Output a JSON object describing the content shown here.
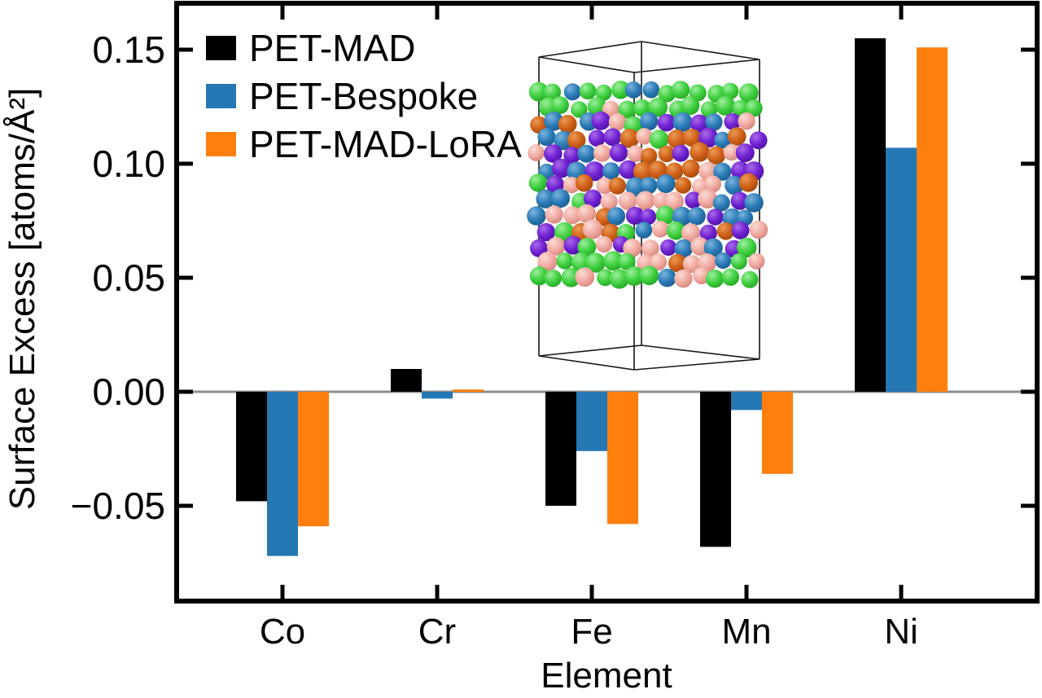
{
  "chart_data": {
    "type": "bar",
    "title": "",
    "xlabel": "Element",
    "ylabel": "Surface Excess [atoms/Å²]",
    "categories": [
      "Co",
      "Cr",
      "Fe",
      "Mn",
      "Ni"
    ],
    "category_label_colors": {
      "Co": "#f5a19c",
      "Cr": "#2e6db5",
      "Fe": "#dd6318",
      "Mn": "#7b10d8",
      "Ni": "#2fd42f"
    },
    "series": [
      {
        "name": "PET-MAD",
        "color": "#000000",
        "values": [
          -0.048,
          0.01,
          -0.05,
          -0.068,
          0.155
        ]
      },
      {
        "name": "PET-Bespoke",
        "color": "#2478b4",
        "values": [
          -0.072,
          -0.003,
          -0.026,
          -0.008,
          0.107
        ]
      },
      {
        "name": "PET-MAD-LoRA",
        "color": "#ff7f0e",
        "values": [
          -0.059,
          0.001,
          -0.058,
          -0.036,
          0.151
        ]
      }
    ],
    "ylim": [
      -0.0905,
      0.1704
    ],
    "yticks": [
      -0.05,
      0.0,
      0.05,
      0.1,
      0.15
    ],
    "ytick_labels": [
      "−0.05",
      "0.00",
      "0.05",
      "0.10",
      "0.15"
    ],
    "legend_position": "upper left",
    "grid": false,
    "zero_line_color": "#8f8f8f"
  },
  "inset": {
    "atom_colors": {
      "Ni": "#3ecf3e",
      "Co": "#f0a9a0",
      "Cr": "#2a7ab6",
      "Mn": "#6e20d2",
      "Fe": "#cf5f16"
    }
  }
}
